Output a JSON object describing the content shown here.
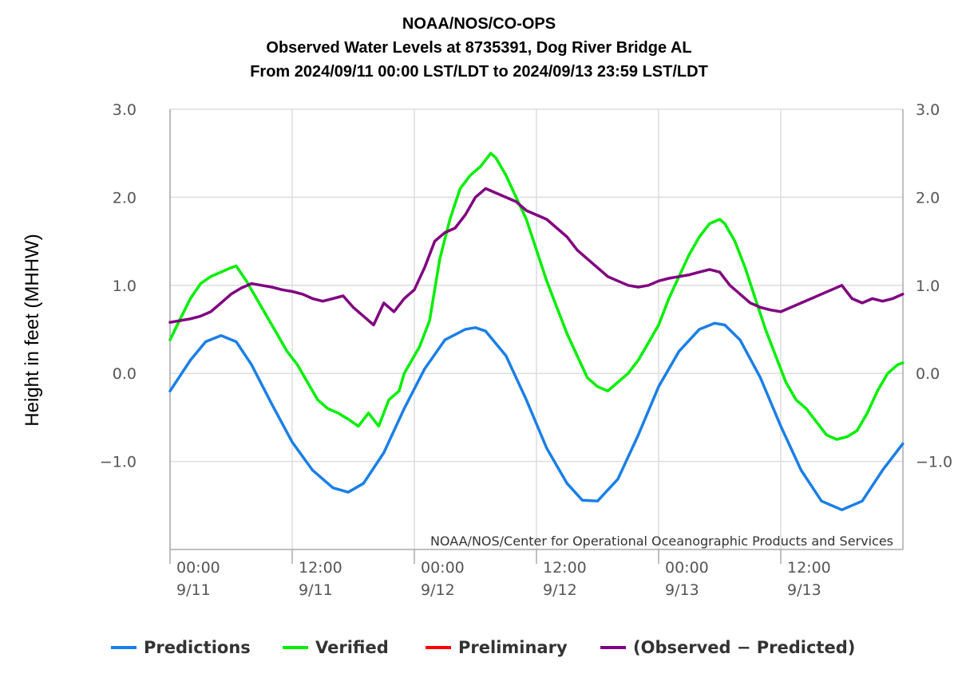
{
  "chart_data": {
    "type": "line",
    "title_lines": [
      "NOAA/NOS/CO-OPS",
      "Observed Water Levels at 8735391, Dog River Bridge AL",
      "From 2024/09/11 00:00 LST/LDT to 2024/09/13 23:59 LST/LDT"
    ],
    "ylabel": "Height in feet (MHHW)",
    "credit": "NOAA/NOS/Center for Operational Oceanographic Products and Services",
    "ylim": [
      -2.0,
      3.0
    ],
    "xlim": [
      "2024-09-11 00:00",
      "2024-09-14 00:00"
    ],
    "y_ticks": [
      {
        "value": 3.0,
        "label": "3.0"
      },
      {
        "value": 2.0,
        "label": "2.0"
      },
      {
        "value": 1.0,
        "label": "1.0"
      },
      {
        "value": 0.0,
        "label": "0.0"
      },
      {
        "value": -1.0,
        "label": "−1.0"
      }
    ],
    "x_ticks": [
      {
        "time": "2024-09-11 00:00",
        "line1": "00:00",
        "line2": "9/11"
      },
      {
        "time": "2024-09-11 12:00",
        "line1": "12:00",
        "line2": "9/11"
      },
      {
        "time": "2024-09-12 00:00",
        "line1": "00:00",
        "line2": "9/12"
      },
      {
        "time": "2024-09-12 12:00",
        "line1": "12:00",
        "line2": "9/12"
      },
      {
        "time": "2024-09-13 00:00",
        "line1": "00:00",
        "line2": "9/13"
      },
      {
        "time": "2024-09-13 12:00",
        "line1": "12:00",
        "line2": "9/13"
      }
    ],
    "grid": true,
    "legend_position": "bottom",
    "series": [
      {
        "name": "Predictions",
        "color": "#1a7fe6",
        "x": [
          "2024-09-11 00:00",
          "2024-09-11 02:00",
          "2024-09-11 03:30",
          "2024-09-11 05:00",
          "2024-09-11 06:30",
          "2024-09-11 08:00",
          "2024-09-11 10:00",
          "2024-09-11 12:00",
          "2024-09-11 14:00",
          "2024-09-11 16:00",
          "2024-09-11 17:30",
          "2024-09-11 19:00",
          "2024-09-11 21:00",
          "2024-09-11 23:00",
          "2024-09-12 01:00",
          "2024-09-12 03:00",
          "2024-09-12 05:00",
          "2024-09-12 06:00",
          "2024-09-12 07:00",
          "2024-09-12 09:00",
          "2024-09-12 11:00",
          "2024-09-12 13:00",
          "2024-09-12 15:00",
          "2024-09-12 16:30",
          "2024-09-12 18:00",
          "2024-09-12 20:00",
          "2024-09-12 22:00",
          "2024-09-13 00:00",
          "2024-09-13 02:00",
          "2024-09-13 04:00",
          "2024-09-13 05:30",
          "2024-09-13 06:30",
          "2024-09-13 08:00",
          "2024-09-13 10:00",
          "2024-09-13 12:00",
          "2024-09-13 14:00",
          "2024-09-13 16:00",
          "2024-09-13 18:00",
          "2024-09-13 20:00",
          "2024-09-13 22:00",
          "2024-09-13 23:59"
        ],
        "y": [
          -0.2,
          0.15,
          0.36,
          0.43,
          0.36,
          0.1,
          -0.35,
          -0.78,
          -1.1,
          -1.3,
          -1.35,
          -1.25,
          -0.9,
          -0.4,
          0.05,
          0.38,
          0.5,
          0.52,
          0.48,
          0.2,
          -0.3,
          -0.85,
          -1.25,
          -1.44,
          -1.45,
          -1.2,
          -0.7,
          -0.15,
          0.25,
          0.5,
          0.57,
          0.55,
          0.38,
          -0.05,
          -0.6,
          -1.1,
          -1.45,
          -1.55,
          -1.45,
          -1.1,
          -0.8
        ]
      },
      {
        "name": "Verified",
        "color": "#00ee00",
        "x": [
          "2024-09-11 00:00",
          "2024-09-11 01:00",
          "2024-09-11 02:00",
          "2024-09-11 03:00",
          "2024-09-11 04:00",
          "2024-09-11 05:00",
          "2024-09-11 06:00",
          "2024-09-11 06:30",
          "2024-09-11 07:30",
          "2024-09-11 08:30",
          "2024-09-11 09:30",
          "2024-09-11 10:30",
          "2024-09-11 11:30",
          "2024-09-11 12:30",
          "2024-09-11 13:30",
          "2024-09-11 14:30",
          "2024-09-11 15:30",
          "2024-09-11 16:30",
          "2024-09-11 17:30",
          "2024-09-11 18:30",
          "2024-09-11 19:30",
          "2024-09-11 20:30",
          "2024-09-11 21:30",
          "2024-09-11 22:30",
          "2024-09-11 23:00",
          "2024-09-11 23:30",
          "2024-09-12 00:30",
          "2024-09-12 01:30",
          "2024-09-12 02:30",
          "2024-09-12 03:30",
          "2024-09-12 04:30",
          "2024-09-12 05:30",
          "2024-09-12 06:30",
          "2024-09-12 07:30",
          "2024-09-12 08:00",
          "2024-09-12 09:00",
          "2024-09-12 10:00",
          "2024-09-12 11:00",
          "2024-09-12 12:00",
          "2024-09-12 13:00",
          "2024-09-12 14:00",
          "2024-09-12 15:00",
          "2024-09-12 16:00",
          "2024-09-12 17:00",
          "2024-09-12 18:00",
          "2024-09-12 19:00",
          "2024-09-12 20:00",
          "2024-09-12 21:00",
          "2024-09-12 22:00",
          "2024-09-12 23:00",
          "2024-09-13 00:00",
          "2024-09-13 01:00",
          "2024-09-13 02:00",
          "2024-09-13 03:00",
          "2024-09-13 04:00",
          "2024-09-13 05:00",
          "2024-09-13 06:00",
          "2024-09-13 06:30",
          "2024-09-13 07:30",
          "2024-09-13 08:30",
          "2024-09-13 09:30",
          "2024-09-13 10:30",
          "2024-09-13 11:30",
          "2024-09-13 12:30",
          "2024-09-13 13:30",
          "2024-09-13 14:30",
          "2024-09-13 15:30",
          "2024-09-13 16:30",
          "2024-09-13 17:30",
          "2024-09-13 18:30",
          "2024-09-13 19:30",
          "2024-09-13 20:30",
          "2024-09-13 21:30",
          "2024-09-13 22:30",
          "2024-09-13 23:30",
          "2024-09-13 23:59"
        ],
        "y": [
          0.38,
          0.62,
          0.85,
          1.02,
          1.1,
          1.15,
          1.2,
          1.22,
          1.05,
          0.85,
          0.65,
          0.45,
          0.25,
          0.1,
          -0.1,
          -0.3,
          -0.4,
          -0.45,
          -0.52,
          -0.6,
          -0.45,
          -0.6,
          -0.3,
          -0.2,
          0.0,
          0.1,
          0.3,
          0.6,
          1.3,
          1.75,
          2.1,
          2.25,
          2.35,
          2.5,
          2.45,
          2.25,
          2.0,
          1.75,
          1.4,
          1.05,
          0.75,
          0.45,
          0.2,
          -0.05,
          -0.15,
          -0.2,
          -0.1,
          0.0,
          0.15,
          0.35,
          0.55,
          0.85,
          1.1,
          1.35,
          1.55,
          1.7,
          1.75,
          1.7,
          1.5,
          1.2,
          0.85,
          0.5,
          0.2,
          -0.1,
          -0.3,
          -0.4,
          -0.55,
          -0.7,
          -0.75,
          -0.72,
          -0.65,
          -0.45,
          -0.2,
          0.0,
          0.1,
          0.12
        ]
      },
      {
        "name": "Preliminary",
        "color": "#ff0000",
        "x": [],
        "y": []
      },
      {
        "name": "(Observed − Predicted)",
        "color": "#800080",
        "x": [
          "2024-09-11 00:00",
          "2024-09-11 01:00",
          "2024-09-11 02:00",
          "2024-09-11 03:00",
          "2024-09-11 04:00",
          "2024-09-11 05:00",
          "2024-09-11 06:00",
          "2024-09-11 07:00",
          "2024-09-11 08:00",
          "2024-09-11 09:00",
          "2024-09-11 10:00",
          "2024-09-11 11:00",
          "2024-09-11 12:00",
          "2024-09-11 13:00",
          "2024-09-11 14:00",
          "2024-09-11 15:00",
          "2024-09-11 16:00",
          "2024-09-11 17:00",
          "2024-09-11 18:00",
          "2024-09-11 19:00",
          "2024-09-11 20:00",
          "2024-09-11 21:00",
          "2024-09-11 22:00",
          "2024-09-11 23:00",
          "2024-09-12 00:00",
          "2024-09-12 01:00",
          "2024-09-12 02:00",
          "2024-09-12 03:00",
          "2024-09-12 04:00",
          "2024-09-12 05:00",
          "2024-09-12 06:00",
          "2024-09-12 07:00",
          "2024-09-12 08:00",
          "2024-09-12 09:00",
          "2024-09-12 10:00",
          "2024-09-12 11:00",
          "2024-09-12 12:00",
          "2024-09-12 13:00",
          "2024-09-12 14:00",
          "2024-09-12 15:00",
          "2024-09-12 16:00",
          "2024-09-12 17:00",
          "2024-09-12 18:00",
          "2024-09-12 19:00",
          "2024-09-12 20:00",
          "2024-09-12 21:00",
          "2024-09-12 22:00",
          "2024-09-12 23:00",
          "2024-09-13 00:00",
          "2024-09-13 01:00",
          "2024-09-13 02:00",
          "2024-09-13 03:00",
          "2024-09-13 04:00",
          "2024-09-13 05:00",
          "2024-09-13 06:00",
          "2024-09-13 07:00",
          "2024-09-13 08:00",
          "2024-09-13 09:00",
          "2024-09-13 10:00",
          "2024-09-13 11:00",
          "2024-09-13 12:00",
          "2024-09-13 13:00",
          "2024-09-13 14:00",
          "2024-09-13 15:00",
          "2024-09-13 16:00",
          "2024-09-13 17:00",
          "2024-09-13 18:00",
          "2024-09-13 19:00",
          "2024-09-13 20:00",
          "2024-09-13 21:00",
          "2024-09-13 22:00",
          "2024-09-13 23:00",
          "2024-09-13 23:59"
        ],
        "y": [
          0.58,
          0.6,
          0.62,
          0.65,
          0.7,
          0.8,
          0.9,
          0.97,
          1.02,
          1.0,
          0.98,
          0.95,
          0.93,
          0.9,
          0.85,
          0.82,
          0.85,
          0.88,
          0.75,
          0.65,
          0.55,
          0.8,
          0.7,
          0.85,
          0.95,
          1.2,
          1.5,
          1.6,
          1.65,
          1.8,
          2.0,
          2.1,
          2.05,
          2.0,
          1.95,
          1.85,
          1.8,
          1.75,
          1.65,
          1.55,
          1.4,
          1.3,
          1.2,
          1.1,
          1.05,
          1.0,
          0.98,
          1.0,
          1.05,
          1.08,
          1.1,
          1.12,
          1.15,
          1.18,
          1.15,
          1.0,
          0.9,
          0.8,
          0.75,
          0.72,
          0.7,
          0.75,
          0.8,
          0.85,
          0.9,
          0.95,
          1.0,
          0.85,
          0.8,
          0.85,
          0.82,
          0.85,
          0.9
        ]
      }
    ]
  }
}
